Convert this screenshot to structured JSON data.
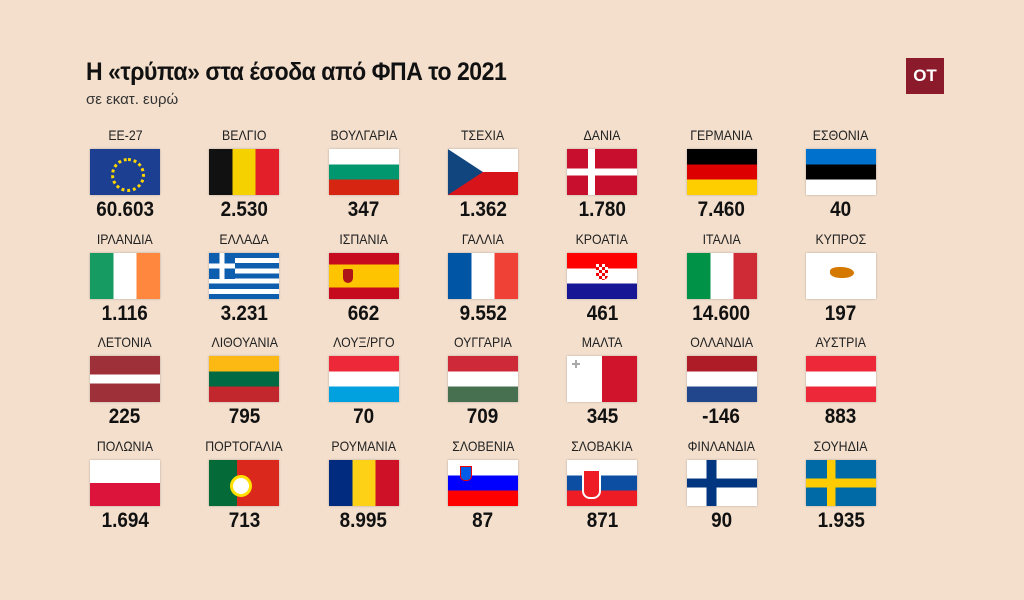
{
  "header": {
    "title": "Η «τρύπα» στα έσοδα από ΦΠΑ το 2021",
    "subtitle": "σε εκατ. ευρώ",
    "logo": "ΟΤ"
  },
  "chart_data": {
    "type": "table",
    "title": "Η «τρύπα» στα έσοδα από ΦΠΑ το 2021",
    "unit": "σε εκατ. ευρώ",
    "rows": [
      {
        "name": "ΕΕ-27",
        "flag": "eu",
        "value": "60.603"
      },
      {
        "name": "ΒΕΛΓΙΟ",
        "flag": "be",
        "value": "2.530"
      },
      {
        "name": "ΒΟΥΛΓΑΡΙΑ",
        "flag": "bg",
        "value": "347"
      },
      {
        "name": "ΤΣΕΧΙΑ",
        "flag": "cz",
        "value": "1.362"
      },
      {
        "name": "ΔΑΝΙΑ",
        "flag": "dk",
        "value": "1.780"
      },
      {
        "name": "ΓΕΡΜΑΝΙΑ",
        "flag": "de",
        "value": "7.460"
      },
      {
        "name": "ΕΣΘΟΝΙΑ",
        "flag": "ee",
        "value": "40"
      },
      {
        "name": "ΙΡΛΑΝΔΙΑ",
        "flag": "ie",
        "value": "1.116"
      },
      {
        "name": "ΕΛΛΑΔΑ",
        "flag": "gr",
        "value": "3.231"
      },
      {
        "name": "ΙΣΠΑΝΙΑ",
        "flag": "es",
        "value": "662"
      },
      {
        "name": "ΓΑΛΛΙΑ",
        "flag": "fr",
        "value": "9.552"
      },
      {
        "name": "ΚΡΟΑΤΙΑ",
        "flag": "hr",
        "value": "461"
      },
      {
        "name": "ΙΤΑΛΙΑ",
        "flag": "it",
        "value": "14.600"
      },
      {
        "name": "ΚΥΠΡΟΣ",
        "flag": "cy",
        "value": "197"
      },
      {
        "name": "ΛΕΤΟΝΙΑ",
        "flag": "lv",
        "value": "225"
      },
      {
        "name": "ΛΙΘΟΥΑΝΙΑ",
        "flag": "lt",
        "value": "795"
      },
      {
        "name": "ΛΟΥΞ/ΡΓΟ",
        "flag": "lu",
        "value": "70"
      },
      {
        "name": "ΟΥΓΓΑΡΙΑ",
        "flag": "hu",
        "value": "709"
      },
      {
        "name": "ΜΑΛΤΑ",
        "flag": "mt",
        "value": "345"
      },
      {
        "name": "ΟΛΛΑΝΔΙΑ",
        "flag": "nl",
        "value": "-146"
      },
      {
        "name": "ΑΥΣΤΡΙΑ",
        "flag": "at",
        "value": "883"
      },
      {
        "name": "ΠΟΛΩΝΙΑ",
        "flag": "pl",
        "value": "1.694"
      },
      {
        "name": "ΠΟΡΤΟΓΑΛΙΑ",
        "flag": "pt",
        "value": "713"
      },
      {
        "name": "ΡΟΥΜΑΝΙΑ",
        "flag": "ro",
        "value": "8.995"
      },
      {
        "name": "ΣΛΟΒΕΝΙΑ",
        "flag": "si",
        "value": "87"
      },
      {
        "name": "ΣΛΟΒΑΚΙΑ",
        "flag": "sk",
        "value": "871"
      },
      {
        "name": "ΦΙΝΛΑΝΔΙΑ",
        "flag": "fi",
        "value": "90"
      },
      {
        "name": "ΣΟΥΗΔΙΑ",
        "flag": "se",
        "value": "1.935"
      }
    ]
  },
  "colors": {
    "background": "#f3dfcc",
    "logo": "#8b1a2b"
  }
}
